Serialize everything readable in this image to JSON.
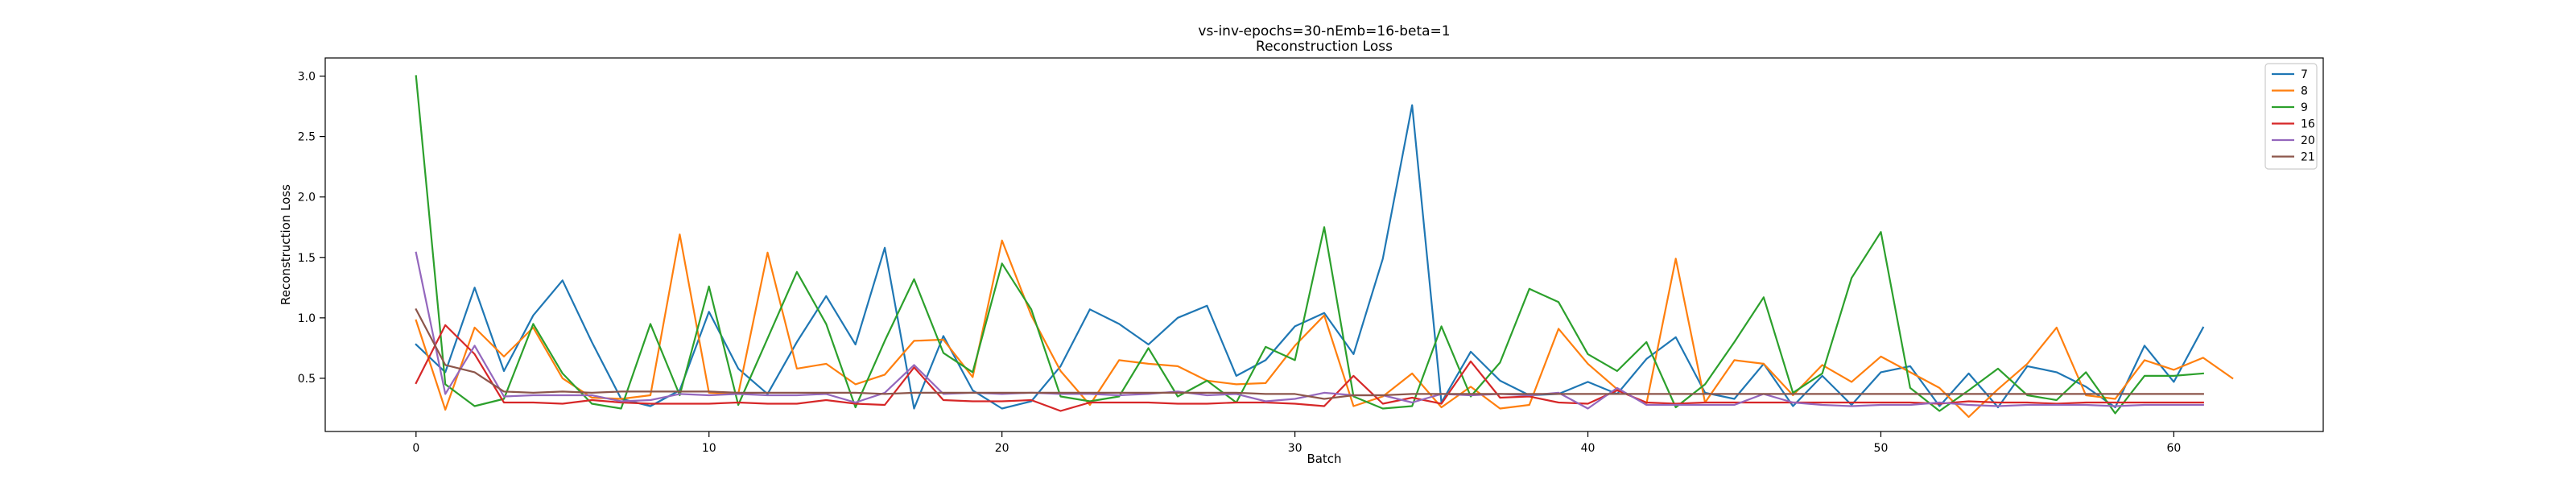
{
  "chart_data": {
    "type": "line",
    "title": "vs-inv-epochs=30-nEmb=16-beta=1",
    "subtitle": "Reconstruction Loss",
    "xlabel": "Batch",
    "ylabel": "Reconstruction Loss",
    "xlim": [
      -3.1,
      65.1
    ],
    "ylim": [
      0.06,
      3.15
    ],
    "xticks": [
      0,
      10,
      20,
      30,
      40,
      50,
      60
    ],
    "yticks": [
      0.5,
      1.0,
      1.5,
      2.0,
      2.5,
      3.0
    ],
    "legend_position": "top-right",
    "series": [
      {
        "name": "7",
        "color": "#1f77b4",
        "x": [
          0,
          1,
          2,
          3,
          4,
          5,
          6,
          7,
          8,
          9,
          10,
          11,
          12,
          13,
          14,
          15,
          16,
          17,
          18,
          19,
          20,
          21,
          22,
          23,
          24,
          25,
          26,
          27,
          28,
          29,
          30,
          31,
          32,
          33,
          34,
          35,
          36,
          37,
          38,
          39,
          40,
          41,
          42,
          43,
          44,
          45,
          46,
          47,
          48,
          49,
          50,
          51,
          52,
          53,
          54,
          55,
          56,
          57,
          58,
          59,
          60,
          61
        ],
        "values": [
          0.78,
          0.55,
          1.25,
          0.56,
          1.02,
          1.31,
          0.8,
          0.33,
          0.27,
          0.4,
          1.05,
          0.58,
          0.37,
          0.8,
          1.18,
          0.78,
          1.58,
          0.25,
          0.85,
          0.4,
          0.25,
          0.31,
          0.6,
          1.07,
          0.95,
          0.78,
          1.0,
          1.1,
          0.52,
          0.65,
          0.93,
          1.04,
          0.7,
          1.49,
          2.76,
          0.3,
          0.72,
          0.48,
          0.36,
          0.37,
          0.47,
          0.37,
          0.66,
          0.84,
          0.38,
          0.33,
          0.62,
          0.27,
          0.52,
          0.28,
          0.55,
          0.6,
          0.27,
          0.54,
          0.26,
          0.6,
          0.55,
          0.43,
          0.26,
          0.77,
          0.47,
          0.92
        ]
      },
      {
        "name": "8",
        "color": "#ff7f0e",
        "x": [
          0,
          1,
          2,
          3,
          4,
          5,
          6,
          7,
          8,
          9,
          10,
          11,
          12,
          13,
          14,
          15,
          16,
          17,
          18,
          19,
          20,
          21,
          22,
          23,
          24,
          25,
          26,
          27,
          28,
          29,
          30,
          31,
          32,
          33,
          34,
          35,
          36,
          37,
          38,
          39,
          40,
          41,
          42,
          43,
          44,
          45,
          46,
          47,
          48,
          49,
          50,
          51,
          52,
          53,
          54,
          55,
          56,
          57,
          58,
          59,
          60,
          61,
          62
        ],
        "values": [
          0.98,
          0.24,
          0.92,
          0.68,
          0.92,
          0.5,
          0.34,
          0.33,
          0.36,
          1.69,
          0.38,
          0.37,
          1.54,
          0.58,
          0.62,
          0.45,
          0.53,
          0.81,
          0.82,
          0.51,
          1.64,
          1.02,
          0.56,
          0.28,
          0.65,
          0.62,
          0.6,
          0.48,
          0.45,
          0.46,
          0.77,
          1.02,
          0.27,
          0.35,
          0.54,
          0.26,
          0.43,
          0.25,
          0.28,
          0.91,
          0.62,
          0.41,
          0.29,
          1.49,
          0.3,
          0.65,
          0.62,
          0.36,
          0.61,
          0.47,
          0.68,
          0.55,
          0.42,
          0.18,
          0.41,
          0.62,
          0.92,
          0.36,
          0.33,
          0.65,
          0.57,
          0.67,
          0.5
        ]
      },
      {
        "name": "9",
        "color": "#2ca02c",
        "x": [
          0,
          1,
          2,
          3,
          4,
          5,
          6,
          7,
          8,
          9,
          10,
          11,
          12,
          13,
          14,
          15,
          16,
          17,
          18,
          19,
          20,
          21,
          22,
          23,
          24,
          25,
          26,
          27,
          28,
          29,
          30,
          31,
          32,
          33,
          34,
          35,
          36,
          37,
          38,
          39,
          40,
          41,
          42,
          43,
          44,
          45,
          46,
          47,
          48,
          49,
          50,
          51,
          52,
          53,
          54,
          55,
          56,
          57,
          58,
          59,
          60,
          61
        ],
        "values": [
          3.0,
          0.45,
          0.27,
          0.33,
          0.95,
          0.54,
          0.29,
          0.25,
          0.95,
          0.36,
          1.26,
          0.28,
          0.83,
          1.38,
          0.95,
          0.26,
          0.81,
          1.32,
          0.71,
          0.55,
          1.45,
          1.07,
          0.35,
          0.31,
          0.35,
          0.75,
          0.35,
          0.48,
          0.3,
          0.76,
          0.65,
          1.75,
          0.35,
          0.25,
          0.27,
          0.93,
          0.35,
          0.63,
          1.24,
          1.13,
          0.7,
          0.56,
          0.8,
          0.26,
          0.45,
          0.8,
          1.17,
          0.38,
          0.54,
          1.33,
          1.71,
          0.42,
          0.23,
          0.4,
          0.58,
          0.36,
          0.32,
          0.55,
          0.21,
          0.52,
          0.52,
          0.54
        ]
      },
      {
        "name": "16",
        "color": "#d62728",
        "x": [
          0,
          1,
          2,
          3,
          4,
          5,
          6,
          7,
          8,
          9,
          10,
          11,
          12,
          13,
          14,
          15,
          16,
          17,
          18,
          19,
          20,
          21,
          22,
          23,
          24,
          25,
          26,
          27,
          28,
          29,
          30,
          31,
          32,
          33,
          34,
          35,
          36,
          37,
          38,
          39,
          40,
          41,
          42,
          43,
          44,
          45,
          46,
          47,
          48,
          49,
          50,
          51,
          52,
          53,
          54,
          55,
          56,
          57,
          58,
          59,
          60,
          61
        ],
        "values": [
          0.46,
          0.94,
          0.7,
          0.3,
          0.3,
          0.29,
          0.32,
          0.3,
          0.29,
          0.29,
          0.29,
          0.3,
          0.29,
          0.29,
          0.32,
          0.29,
          0.28,
          0.59,
          0.32,
          0.31,
          0.31,
          0.32,
          0.23,
          0.3,
          0.3,
          0.3,
          0.29,
          0.29,
          0.3,
          0.3,
          0.29,
          0.27,
          0.52,
          0.29,
          0.34,
          0.29,
          0.64,
          0.34,
          0.35,
          0.3,
          0.29,
          0.4,
          0.3,
          0.29,
          0.3,
          0.3,
          0.3,
          0.3,
          0.3,
          0.3,
          0.3,
          0.3,
          0.29,
          0.31,
          0.3,
          0.3,
          0.29,
          0.3,
          0.3,
          0.3,
          0.3,
          0.3
        ]
      },
      {
        "name": "20",
        "color": "#9467bd",
        "x": [
          0,
          1,
          2,
          3,
          4,
          5,
          6,
          7,
          8,
          9,
          10,
          11,
          12,
          13,
          14,
          15,
          16,
          17,
          18,
          19,
          20,
          21,
          22,
          23,
          24,
          25,
          26,
          27,
          28,
          29,
          30,
          31,
          32,
          33,
          34,
          35,
          36,
          37,
          38,
          39,
          40,
          41,
          42,
          43,
          44,
          45,
          46,
          47,
          48,
          49,
          50,
          51,
          52,
          53,
          54,
          55,
          56,
          57,
          58,
          59,
          60,
          61
        ],
        "values": [
          1.54,
          0.37,
          0.77,
          0.35,
          0.36,
          0.36,
          0.36,
          0.31,
          0.32,
          0.37,
          0.36,
          0.37,
          0.36,
          0.36,
          0.37,
          0.3,
          0.38,
          0.61,
          0.37,
          0.38,
          0.37,
          0.38,
          0.37,
          0.37,
          0.36,
          0.37,
          0.39,
          0.36,
          0.37,
          0.31,
          0.33,
          0.38,
          0.36,
          0.36,
          0.3,
          0.37,
          0.36,
          0.37,
          0.36,
          0.38,
          0.25,
          0.42,
          0.28,
          0.28,
          0.28,
          0.28,
          0.37,
          0.3,
          0.28,
          0.27,
          0.28,
          0.28,
          0.3,
          0.28,
          0.27,
          0.28,
          0.28,
          0.28,
          0.27,
          0.28,
          0.28,
          0.28
        ]
      },
      {
        "name": "21",
        "color": "#8c564b",
        "x": [
          0,
          1,
          2,
          3,
          4,
          5,
          6,
          7,
          8,
          9,
          10,
          11,
          12,
          13,
          14,
          15,
          16,
          17,
          18,
          19,
          20,
          21,
          22,
          23,
          24,
          25,
          26,
          27,
          28,
          29,
          30,
          31,
          32,
          33,
          34,
          35,
          36,
          37,
          38,
          39,
          40,
          41,
          42,
          43,
          44,
          45,
          46,
          47,
          48,
          49,
          50,
          51,
          52,
          53,
          54,
          55,
          56,
          57,
          58,
          59,
          60,
          61
        ],
        "values": [
          1.07,
          0.61,
          0.55,
          0.39,
          0.38,
          0.39,
          0.38,
          0.39,
          0.39,
          0.39,
          0.39,
          0.38,
          0.38,
          0.38,
          0.38,
          0.38,
          0.37,
          0.38,
          0.38,
          0.38,
          0.38,
          0.38,
          0.38,
          0.38,
          0.38,
          0.38,
          0.38,
          0.38,
          0.38,
          0.37,
          0.37,
          0.33,
          0.36,
          0.36,
          0.37,
          0.37,
          0.37,
          0.37,
          0.37,
          0.37,
          0.37,
          0.37,
          0.37,
          0.37,
          0.37,
          0.37,
          0.37,
          0.37,
          0.37,
          0.37,
          0.37,
          0.37,
          0.37,
          0.37,
          0.37,
          0.37,
          0.37,
          0.37,
          0.37,
          0.37,
          0.37,
          0.37
        ]
      }
    ]
  }
}
